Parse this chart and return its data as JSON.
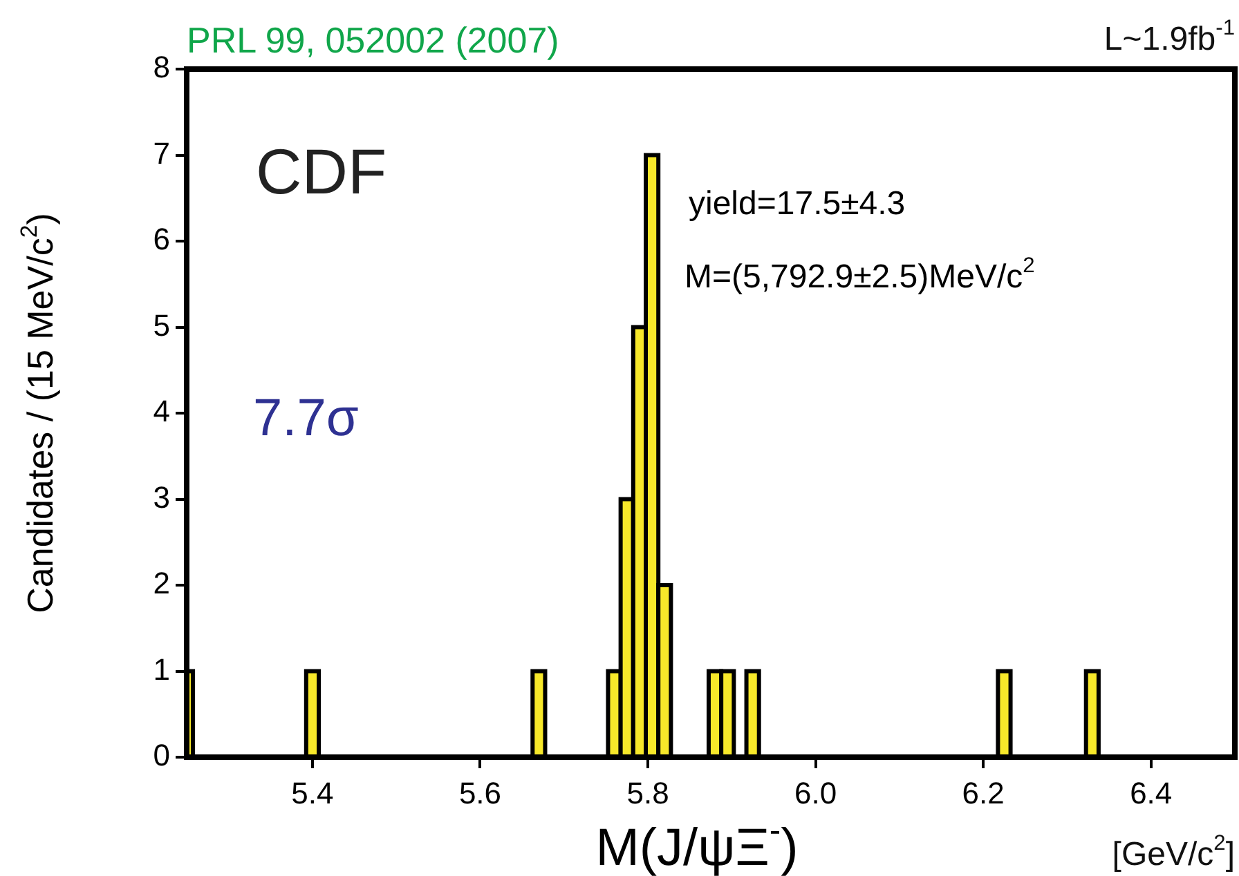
{
  "chart_data": {
    "type": "histogram",
    "title": "PRL 99, 052002 (2007)",
    "xlabel": "M(J/ψΞ$^{-}$)",
    "ylabel": "Candidates / (15 MeV/c$^{2}$)",
    "annotations": [
      "L~1.9fb$^{-1}$",
      "CDF",
      "yield=17.5±4.3",
      "M=(5,792.9±2.5)MeV/c$^{2}$",
      "7.7σ",
      "[GeV/c$^{2}$]"
    ],
    "bins": [
      5.25,
      5.2575,
      5.3925,
      5.4075,
      5.6625,
      5.6775,
      5.7525,
      5.7675,
      5.7825,
      5.7975,
      5.8125,
      5.8275,
      5.8725,
      5.8875,
      5.9025,
      5.9175,
      5.9325,
      6.2175,
      6.2325,
      6.3225,
      6.3375
    ],
    "values": [
      1,
      0,
      1,
      0,
      1,
      0,
      1,
      3,
      5,
      7,
      2,
      0,
      1,
      1,
      0,
      1,
      0,
      1,
      0,
      1
    ],
    "color": "#f7e82a",
    "xlim": [
      5.25,
      6.5
    ],
    "xticks": [
      5.4,
      5.6,
      5.8,
      {
        "value": 6,
        "label": "6.0"
      },
      6.2,
      6.4
    ],
    "ylim": [
      0,
      8
    ],
    "yticks": [
      0,
      1,
      2,
      3,
      4,
      5,
      6,
      7,
      8
    ],
    "grid": false,
    "legend": false
  }
}
